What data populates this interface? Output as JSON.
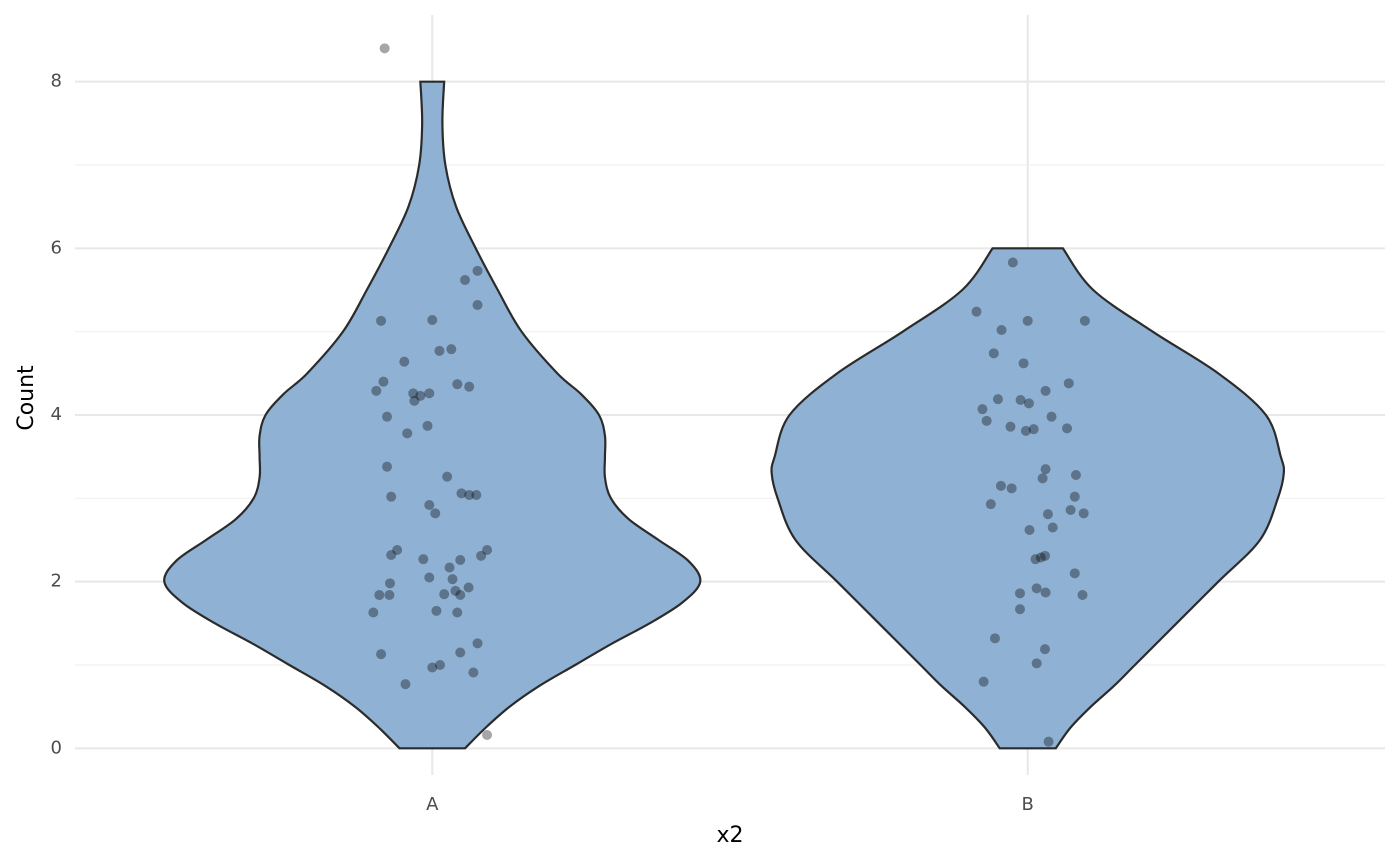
{
  "chart_data": {
    "type": "violin",
    "x_label": "x2",
    "y_label": "Count",
    "categories": [
      "A",
      "B"
    ],
    "xlim": [
      0.4,
      2.6
    ],
    "ylim": [
      -0.32,
      8.8
    ],
    "yticks": [
      0,
      2,
      4,
      6,
      8
    ],
    "yminorticks": [
      1,
      3,
      5,
      7
    ],
    "grid": true,
    "fill": "#8fb1d3",
    "outline": "#2b2b2b",
    "point_color": "#000000",
    "point_alpha": 0.35,
    "groups": [
      {
        "density": {
          "y": [
            0,
            0.25,
            0.5,
            0.75,
            1.0,
            1.25,
            1.5,
            1.75,
            2.0,
            2.25,
            2.5,
            2.75,
            3.0,
            3.25,
            3.5,
            3.75,
            4.0,
            4.25,
            4.5,
            5.0,
            5.5,
            6.0,
            6.5,
            7.0,
            7.5,
            8.0
          ],
          "width": [
            0.055,
            0.09,
            0.13,
            0.18,
            0.24,
            0.3,
            0.365,
            0.42,
            0.45,
            0.43,
            0.38,
            0.33,
            0.3,
            0.29,
            0.29,
            0.29,
            0.28,
            0.25,
            0.21,
            0.15,
            0.11,
            0.073,
            0.04,
            0.022,
            0.017,
            0.02
          ]
        },
        "points": {
          "jitter": [
            -0.08,
            0.076,
            0.055,
            0.076,
            -0.086,
            0,
            0.032,
            0.012,
            -0.047,
            -0.082,
            -0.094,
            0.042,
            0.062,
            -0.032,
            -0.02,
            -0.005,
            -0.03,
            -0.076,
            -0.008,
            -0.042,
            -0.076,
            0.025,
            -0.069,
            0.049,
            0.062,
            0.074,
            -0.005,
            0.005,
            -0.059,
            -0.069,
            -0.015,
            0.092,
            0.082,
            0.047,
            0.029,
            -0.005,
            0.034,
            -0.071,
            0.061,
            -0.089,
            -0.072,
            0.02,
            0.039,
            0.047,
            -0.099,
            0.007,
            0.042,
            0.076,
            -0.086,
            0.047,
            0,
            0.013,
            0.069,
            -0.045,
            0.092
          ],
          "y": [
            8.4,
            5.73,
            5.62,
            5.32,
            5.13,
            5.14,
            4.79,
            4.77,
            4.64,
            4.4,
            4.29,
            4.37,
            4.34,
            4.26,
            4.23,
            4.26,
            4.17,
            3.98,
            3.87,
            3.78,
            3.38,
            3.26,
            3.02,
            3.06,
            3.04,
            3.04,
            2.92,
            2.82,
            2.38,
            2.32,
            2.27,
            2.38,
            2.31,
            2.26,
            2.17,
            2.05,
            2.03,
            1.98,
            1.93,
            1.84,
            1.84,
            1.85,
            1.89,
            1.84,
            1.63,
            1.65,
            1.63,
            1.26,
            1.13,
            1.15,
            0.97,
            1.0,
            0.91,
            0.77,
            0.16
          ]
        }
      },
      {
        "density": {
          "y": [
            0,
            0.25,
            0.5,
            0.75,
            1.0,
            1.5,
            2.0,
            2.5,
            3.0,
            3.3,
            3.5,
            4.0,
            4.5,
            5.0,
            5.5,
            6.0
          ],
          "width": [
            0.047,
            0.072,
            0.106,
            0.145,
            0.18,
            0.25,
            0.32,
            0.39,
            0.42,
            0.43,
            0.425,
            0.4,
            0.32,
            0.21,
            0.11,
            0.059
          ]
        },
        "points": {
          "jitter": [
            -0.025,
            -0.086,
            0,
            0.096,
            -0.044,
            -0.057,
            -0.007,
            0.069,
            0.03,
            -0.05,
            -0.012,
            0.002,
            -0.076,
            0.04,
            -0.069,
            -0.029,
            0.01,
            -0.003,
            0.066,
            0.03,
            0.081,
            0.025,
            -0.045,
            -0.027,
            0.079,
            -0.062,
            0.072,
            0.094,
            0.034,
            0.042,
            0.003,
            0.029,
            0.022,
            0.013,
            0.079,
            0.015,
            -0.013,
            0.03,
            0.092,
            -0.013,
            -0.055,
            0.029,
            0.015,
            -0.074,
            0.035
          ],
          "y": [
            5.83,
            5.24,
            5.13,
            5.13,
            5.02,
            4.74,
            4.62,
            4.38,
            4.29,
            4.19,
            4.18,
            4.14,
            4.07,
            3.98,
            3.93,
            3.86,
            3.83,
            3.81,
            3.84,
            3.35,
            3.28,
            3.24,
            3.15,
            3.12,
            3.02,
            2.93,
            2.86,
            2.82,
            2.81,
            2.65,
            2.62,
            2.31,
            2.29,
            2.27,
            2.1,
            1.92,
            1.86,
            1.87,
            1.84,
            1.67,
            1.32,
            1.19,
            1.02,
            0.8,
            0.08
          ]
        }
      }
    ]
  }
}
